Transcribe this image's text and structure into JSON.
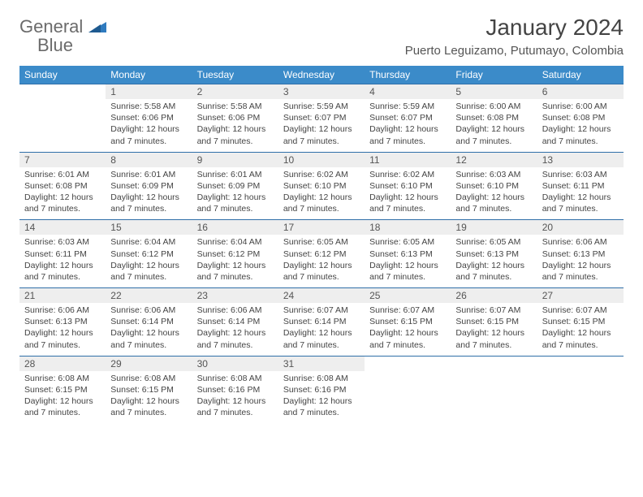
{
  "logo": {
    "word1": "General",
    "word2": "Blue"
  },
  "title": "January 2024",
  "subtitle": "Puerto Leguizamo, Putumayo, Colombia",
  "colors": {
    "header_bg": "#3b8bc9",
    "header_text": "#ffffff",
    "daynum_bg": "#eeeeee",
    "rule": "#2f6fa8",
    "text": "#444444",
    "logo_gray": "#6b6b6b",
    "logo_blue": "#2f7bbf"
  },
  "day_headers": [
    "Sunday",
    "Monday",
    "Tuesday",
    "Wednesday",
    "Thursday",
    "Friday",
    "Saturday"
  ],
  "daylight_text": "Daylight: 12 hours and 7 minutes.",
  "weeks": [
    [
      null,
      {
        "n": "1",
        "sunrise": "5:58 AM",
        "sunset": "6:06 PM"
      },
      {
        "n": "2",
        "sunrise": "5:58 AM",
        "sunset": "6:06 PM"
      },
      {
        "n": "3",
        "sunrise": "5:59 AM",
        "sunset": "6:07 PM"
      },
      {
        "n": "4",
        "sunrise": "5:59 AM",
        "sunset": "6:07 PM"
      },
      {
        "n": "5",
        "sunrise": "6:00 AM",
        "sunset": "6:08 PM"
      },
      {
        "n": "6",
        "sunrise": "6:00 AM",
        "sunset": "6:08 PM"
      }
    ],
    [
      {
        "n": "7",
        "sunrise": "6:01 AM",
        "sunset": "6:08 PM"
      },
      {
        "n": "8",
        "sunrise": "6:01 AM",
        "sunset": "6:09 PM"
      },
      {
        "n": "9",
        "sunrise": "6:01 AM",
        "sunset": "6:09 PM"
      },
      {
        "n": "10",
        "sunrise": "6:02 AM",
        "sunset": "6:10 PM"
      },
      {
        "n": "11",
        "sunrise": "6:02 AM",
        "sunset": "6:10 PM"
      },
      {
        "n": "12",
        "sunrise": "6:03 AM",
        "sunset": "6:10 PM"
      },
      {
        "n": "13",
        "sunrise": "6:03 AM",
        "sunset": "6:11 PM"
      }
    ],
    [
      {
        "n": "14",
        "sunrise": "6:03 AM",
        "sunset": "6:11 PM"
      },
      {
        "n": "15",
        "sunrise": "6:04 AM",
        "sunset": "6:12 PM"
      },
      {
        "n": "16",
        "sunrise": "6:04 AM",
        "sunset": "6:12 PM"
      },
      {
        "n": "17",
        "sunrise": "6:05 AM",
        "sunset": "6:12 PM"
      },
      {
        "n": "18",
        "sunrise": "6:05 AM",
        "sunset": "6:13 PM"
      },
      {
        "n": "19",
        "sunrise": "6:05 AM",
        "sunset": "6:13 PM"
      },
      {
        "n": "20",
        "sunrise": "6:06 AM",
        "sunset": "6:13 PM"
      }
    ],
    [
      {
        "n": "21",
        "sunrise": "6:06 AM",
        "sunset": "6:13 PM"
      },
      {
        "n": "22",
        "sunrise": "6:06 AM",
        "sunset": "6:14 PM"
      },
      {
        "n": "23",
        "sunrise": "6:06 AM",
        "sunset": "6:14 PM"
      },
      {
        "n": "24",
        "sunrise": "6:07 AM",
        "sunset": "6:14 PM"
      },
      {
        "n": "25",
        "sunrise": "6:07 AM",
        "sunset": "6:15 PM"
      },
      {
        "n": "26",
        "sunrise": "6:07 AM",
        "sunset": "6:15 PM"
      },
      {
        "n": "27",
        "sunrise": "6:07 AM",
        "sunset": "6:15 PM"
      }
    ],
    [
      {
        "n": "28",
        "sunrise": "6:08 AM",
        "sunset": "6:15 PM"
      },
      {
        "n": "29",
        "sunrise": "6:08 AM",
        "sunset": "6:15 PM"
      },
      {
        "n": "30",
        "sunrise": "6:08 AM",
        "sunset": "6:16 PM"
      },
      {
        "n": "31",
        "sunrise": "6:08 AM",
        "sunset": "6:16 PM"
      },
      null,
      null,
      null
    ]
  ]
}
